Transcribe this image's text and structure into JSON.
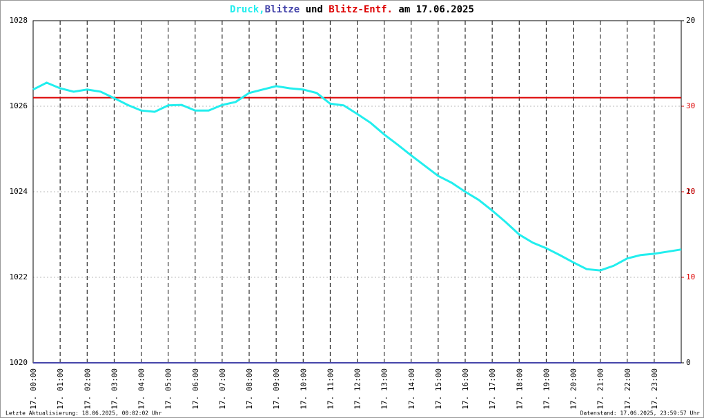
{
  "chart_data": {
    "type": "line",
    "title": "am 17.06.2025",
    "title_connector": "und",
    "footer_left": "Letzte Aktualisierung: 18.06.2025, 00:02:02 Uhr",
    "footer_right": "Datenstand: 17.06.2025, 23:59:57 Uhr",
    "x": [
      0,
      0.5,
      1,
      1.5,
      2,
      2.5,
      3,
      3.5,
      4,
      4.5,
      5,
      5.5,
      6,
      6.5,
      7,
      7.5,
      8,
      8.5,
      9,
      9.5,
      10,
      10.5,
      11,
      11.5,
      12,
      12.5,
      13,
      13.5,
      14,
      14.5,
      15,
      15.5,
      16,
      16.5,
      17,
      17.5,
      18,
      18.5,
      19,
      19.5,
      20,
      20.5,
      21,
      21.5,
      22,
      22.5,
      23,
      23.5,
      24
    ],
    "xlim": [
      0,
      24
    ],
    "xticks": [
      {
        "value": 0,
        "label": "17. 00:00"
      },
      {
        "value": 1,
        "label": "17. 01:00"
      },
      {
        "value": 2,
        "label": "17. 02:00"
      },
      {
        "value": 3,
        "label": "17. 03:00"
      },
      {
        "value": 4,
        "label": "17. 04:00"
      },
      {
        "value": 5,
        "label": "17. 05:00"
      },
      {
        "value": 6,
        "label": "17. 06:00"
      },
      {
        "value": 7,
        "label": "17. 07:00"
      },
      {
        "value": 8,
        "label": "17. 08:00"
      },
      {
        "value": 9,
        "label": "17. 09:00"
      },
      {
        "value": 10,
        "label": "17. 10:00"
      },
      {
        "value": 11,
        "label": "17. 11:00"
      },
      {
        "value": 12,
        "label": "17. 12:00"
      },
      {
        "value": 13,
        "label": "17. 13:00"
      },
      {
        "value": 14,
        "label": "17. 14:00"
      },
      {
        "value": 15,
        "label": "17. 15:00"
      },
      {
        "value": 16,
        "label": "17. 16:00"
      },
      {
        "value": 17,
        "label": "17. 17:00"
      },
      {
        "value": 18,
        "label": "17. 18:00"
      },
      {
        "value": 19,
        "label": "17. 19:00"
      },
      {
        "value": 20,
        "label": "17. 20:00"
      },
      {
        "value": 21,
        "label": "17. 21:00"
      },
      {
        "value": 22,
        "label": "17. 22:00"
      },
      {
        "value": 23,
        "label": "17. 23:00"
      }
    ],
    "ylim": [
      1020,
      1028
    ],
    "yticks": [
      1020,
      1022,
      1024,
      1026,
      1028
    ],
    "y2lim": [
      0,
      20
    ],
    "y2ticks": [
      0,
      10,
      20
    ],
    "y2color": "#000000",
    "y3lim": [
      0,
      40
    ],
    "y3ticks": [
      10,
      20,
      30
    ],
    "y3color": "#dd0000",
    "grid": true,
    "series": [
      {
        "name": "Druck,",
        "color": "#22eeee",
        "values": [
          1026.39,
          1026.55,
          1026.42,
          1026.34,
          1026.39,
          1026.34,
          1026.19,
          1026.03,
          1025.9,
          1025.87,
          1026.02,
          1026.03,
          1025.9,
          1025.9,
          1026.03,
          1026.1,
          1026.31,
          1026.39,
          1026.47,
          1026.42,
          1026.39,
          1026.31,
          1026.06,
          1026.02,
          1025.82,
          1025.61,
          1025.34,
          1025.1,
          1024.85,
          1024.61,
          1024.37,
          1024.21,
          1024.0,
          1023.81,
          1023.56,
          1023.29,
          1023.0,
          1022.81,
          1022.68,
          1022.52,
          1022.35,
          1022.19,
          1022.16,
          1022.27,
          1022.44,
          1022.52,
          1022.55,
          1022.6,
          1022.65
        ]
      },
      {
        "name": "Blitze",
        "color": "#4444aa",
        "axis": "y2",
        "values": [
          0,
          0,
          0,
          0,
          0,
          0,
          0,
          0,
          0,
          0,
          0,
          0,
          0,
          0,
          0,
          0,
          0,
          0,
          0,
          0,
          0,
          0,
          0,
          0,
          0,
          0,
          0,
          0,
          0,
          0,
          0,
          0,
          0,
          0,
          0,
          0,
          0,
          0,
          0,
          0,
          0,
          0,
          0,
          0,
          0,
          0,
          0,
          0,
          0
        ]
      },
      {
        "name": "Blitz-Entf.",
        "color": "#dd0000",
        "axis": "y3",
        "values": [
          31,
          31,
          31,
          31,
          31,
          31,
          31,
          31,
          31,
          31,
          31,
          31,
          31,
          31,
          31,
          31,
          31,
          31,
          31,
          31,
          31,
          31,
          31,
          31,
          31,
          31,
          31,
          31,
          31,
          31,
          31,
          31,
          31,
          31,
          31,
          31,
          31,
          31,
          31,
          31,
          31,
          31,
          31,
          31,
          31,
          31,
          31,
          31,
          31
        ]
      }
    ]
  }
}
